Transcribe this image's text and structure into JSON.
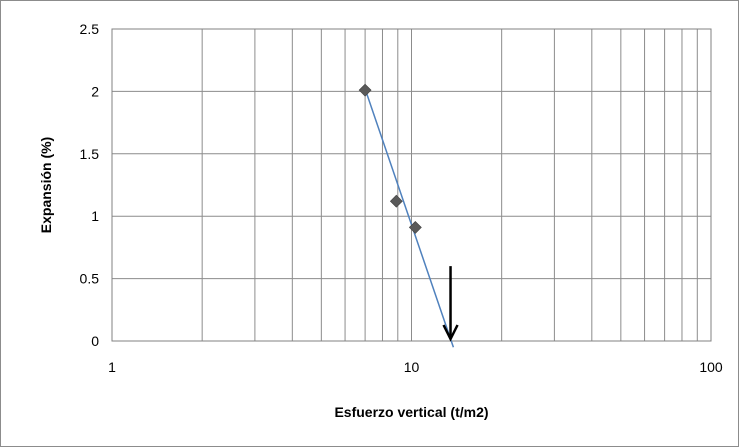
{
  "chart_data": {
    "type": "scatter",
    "title": "",
    "xlabel": "Esfuerzo vertical (t/m2)",
    "ylabel": "Expansión (%)",
    "xscale": "log",
    "xlim": [
      1,
      100
    ],
    "ylim": [
      0,
      2.5
    ],
    "x_tick_labels": [
      "1",
      "10",
      "100"
    ],
    "y_tick_labels": [
      "0",
      "0.5",
      "1",
      "1.5",
      "2",
      "2.5"
    ],
    "grid": true,
    "legend": "none",
    "series": [
      {
        "points": [
          {
            "x": 7.0,
            "y": 2.01
          },
          {
            "x": 8.9,
            "y": 1.12
          },
          {
            "x": 10.3,
            "y": 0.91
          }
        ],
        "marker": "diamond",
        "marker_color": "#595959"
      }
    ],
    "trendline": {
      "points": [
        {
          "x": 7.0,
          "y": 2.02
        },
        {
          "x": 13.8,
          "y": -0.05
        }
      ],
      "color": "#4f81bd"
    },
    "annotation": {
      "type": "arrow",
      "direction": "down",
      "x": 13.5,
      "y_from": 0.6,
      "y_to": 0.0,
      "color": "#000000"
    }
  }
}
